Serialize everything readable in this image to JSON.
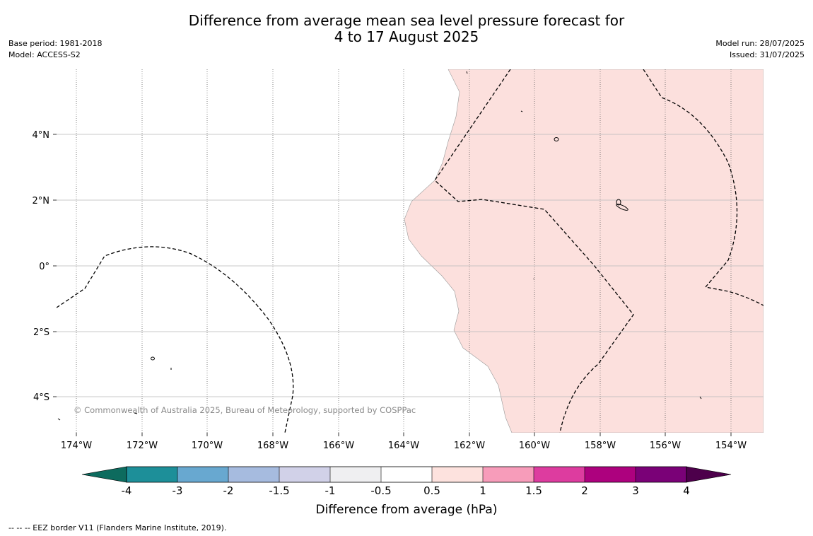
{
  "header": {
    "title_line1": "Difference from average mean sea level pressure forecast for",
    "title_line2": "4 to 17 August 2025",
    "base_period": "Base period: 1981-2018",
    "model": "Model: ACCESS-S2",
    "model_run": "Model run: 28/07/2025",
    "issued": "Issued: 31/07/2025"
  },
  "map": {
    "lon_labels": [
      "174°W",
      "172°W",
      "170°W",
      "168°W",
      "166°W",
      "164°W",
      "162°W",
      "160°W",
      "158°W",
      "156°W",
      "154°W"
    ],
    "lat_labels": [
      "4°N",
      "2°N",
      "0°",
      "2°S",
      "4°S"
    ],
    "copyright": "© Commonwealth of Australia 2025, Bureau of Meteorology, supported by COSPPac",
    "anomaly_fill_color": "#fce0dd"
  },
  "colorbar": {
    "tick_labels": [
      "-4",
      "-3",
      "-2",
      "-1.5",
      "-1",
      "-0.5",
      "0.5",
      "1",
      "1.5",
      "2",
      "3",
      "4"
    ],
    "colors": [
      "#0d6b5e",
      "#1d8f99",
      "#68a8d0",
      "#a6bbdf",
      "#d1d1e8",
      "#efeff1",
      "#ffffff",
      "#fde2de",
      "#f79cba",
      "#dd3c9f",
      "#ad017e",
      "#7a0177",
      "#4d004b"
    ],
    "label": "Difference from average (hPa)"
  },
  "footer": {
    "eez_note": "--  --  -- EEZ border V11 (Flanders Marine Institute, 2019)."
  }
}
